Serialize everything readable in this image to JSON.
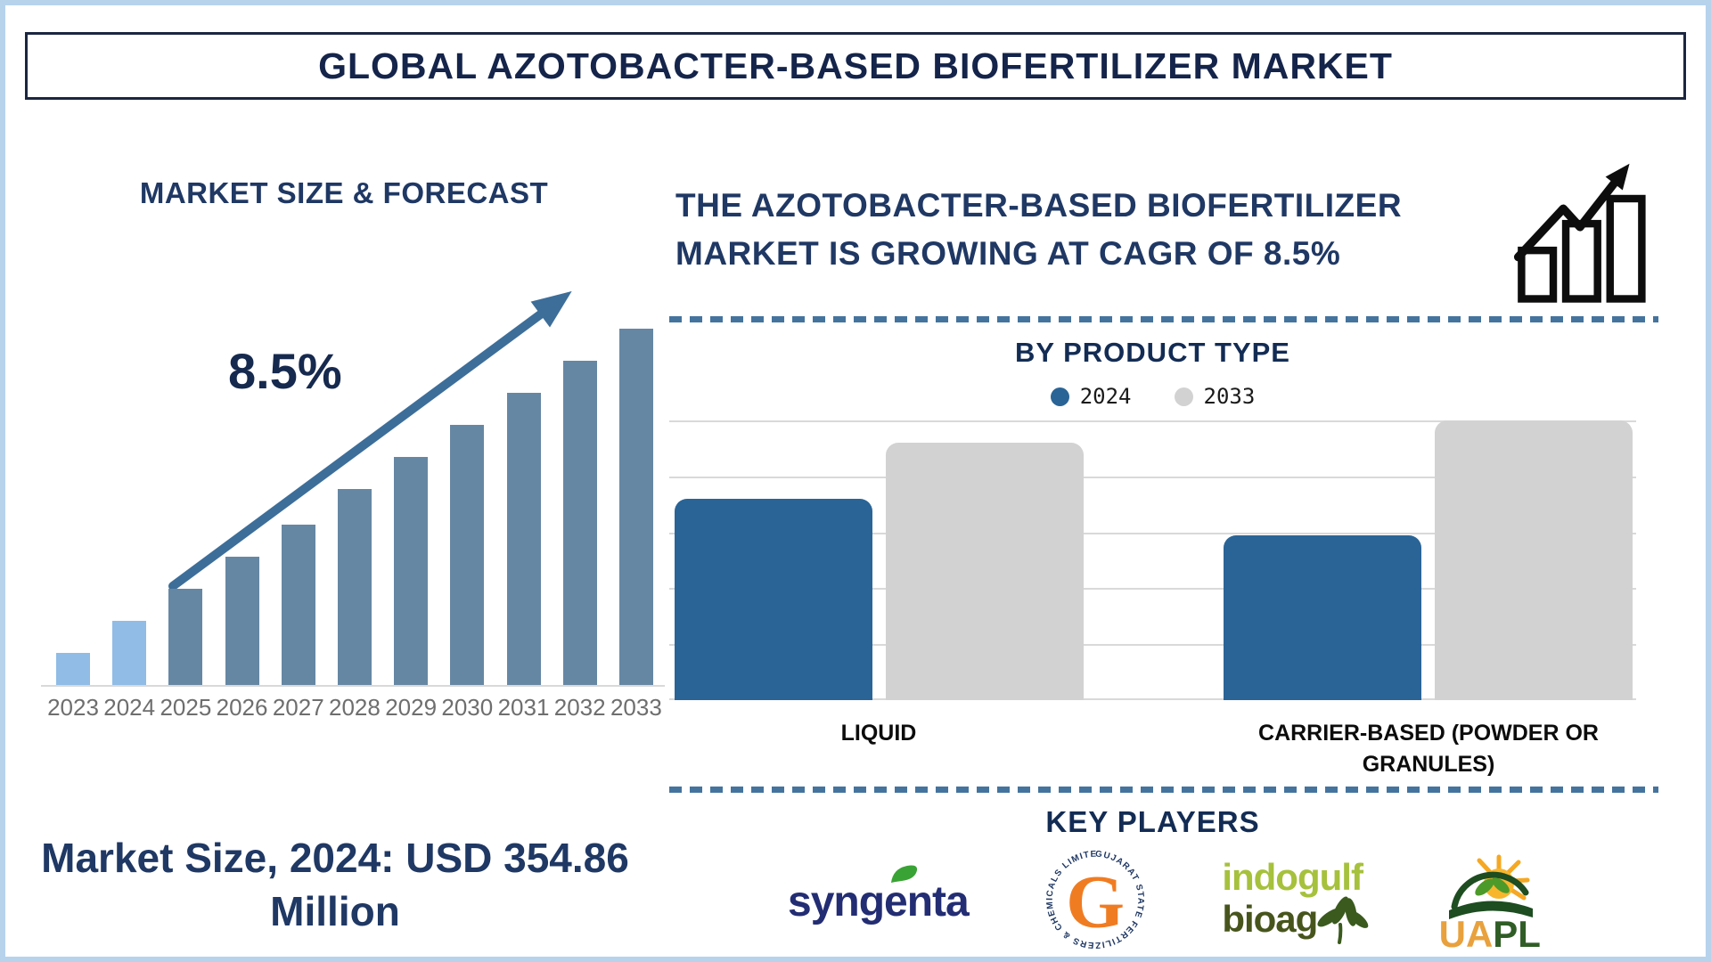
{
  "page": {
    "title": "GLOBAL AZOTOBACTER-BASED BIOFERTILIZER MARKET"
  },
  "colors": {
    "navy": "#1f3864",
    "steel_blue": "#3d6e99",
    "bar_light_blue": "#90bce6",
    "bar_slate": "#6687a4",
    "bar_blue_2024": "#2a6496",
    "bar_gray_2033": "#d2d2d2",
    "gridline": "#d9d9d9",
    "page_border": "#b7d3ec"
  },
  "forecast_section": {
    "heading": "MARKET SIZE & FORECAST",
    "cagr_label": "8.5%",
    "market_size_note": "Market Size, 2024: USD 354.86 Million"
  },
  "growth_banner": {
    "headline": "THE AZOTOBACTER-BASED BIOFERTILIZER MARKET IS GROWING AT CAGR OF 8.5%"
  },
  "product_type_section": {
    "heading": "BY PRODUCT TYPE"
  },
  "key_players_section": {
    "heading": "KEY PLAYERS",
    "players": [
      {
        "name": "Syngenta",
        "wordmark": "syngenta"
      },
      {
        "name": "Gujarat State Fertilizers & Chemicals Limited",
        "monogram": "G",
        "ring_text": "GUJARAT STATE FERTILIZERS & CHEMICALS LIMITED ®"
      },
      {
        "name": "Indogulf BioAg",
        "line1": "indogulf",
        "line2": "bioag"
      },
      {
        "name": "UAPL",
        "part_orange": "UA",
        "part_green": "PL"
      }
    ]
  },
  "chart_data": [
    {
      "id": "market-size-forecast",
      "type": "bar",
      "title": "MARKET SIZE & FORECAST",
      "categories": [
        "2023",
        "2024",
        "2025",
        "2026",
        "2027",
        "2028",
        "2029",
        "2030",
        "2031",
        "2032",
        "2033"
      ],
      "values_relative_height_pct": [
        9,
        18,
        27,
        36,
        45,
        55,
        64,
        73,
        82,
        91,
        100
      ],
      "yaxis": "none shown (stylized growth bars, no value axis)",
      "highlight": "2023-2024 bars light blue (historical); 2025-2033 slate blue (forecast)",
      "annotations": [
        {
          "text": "8.5%",
          "meaning": "CAGR shown beside rising arrow"
        },
        {
          "text": "Market Size, 2024: USD 354.86 Million"
        }
      ],
      "grid": false,
      "legend_position": "none"
    },
    {
      "id": "by-product-type",
      "type": "bar",
      "title": "BY PRODUCT TYPE",
      "categories": [
        "LIQUID",
        "CARRIER-BASED (POWDER OR GRANULES)"
      ],
      "series": [
        {
          "name": "2024",
          "color": "#2a6496",
          "values_relative_height_pct": [
            72,
            59
          ]
        },
        {
          "name": "2033",
          "color": "#d2d2d2",
          "values_relative_height_pct": [
            92,
            100
          ]
        }
      ],
      "yaxis": "none shown (no value labels)",
      "grid": true,
      "legend_position": "top"
    }
  ]
}
